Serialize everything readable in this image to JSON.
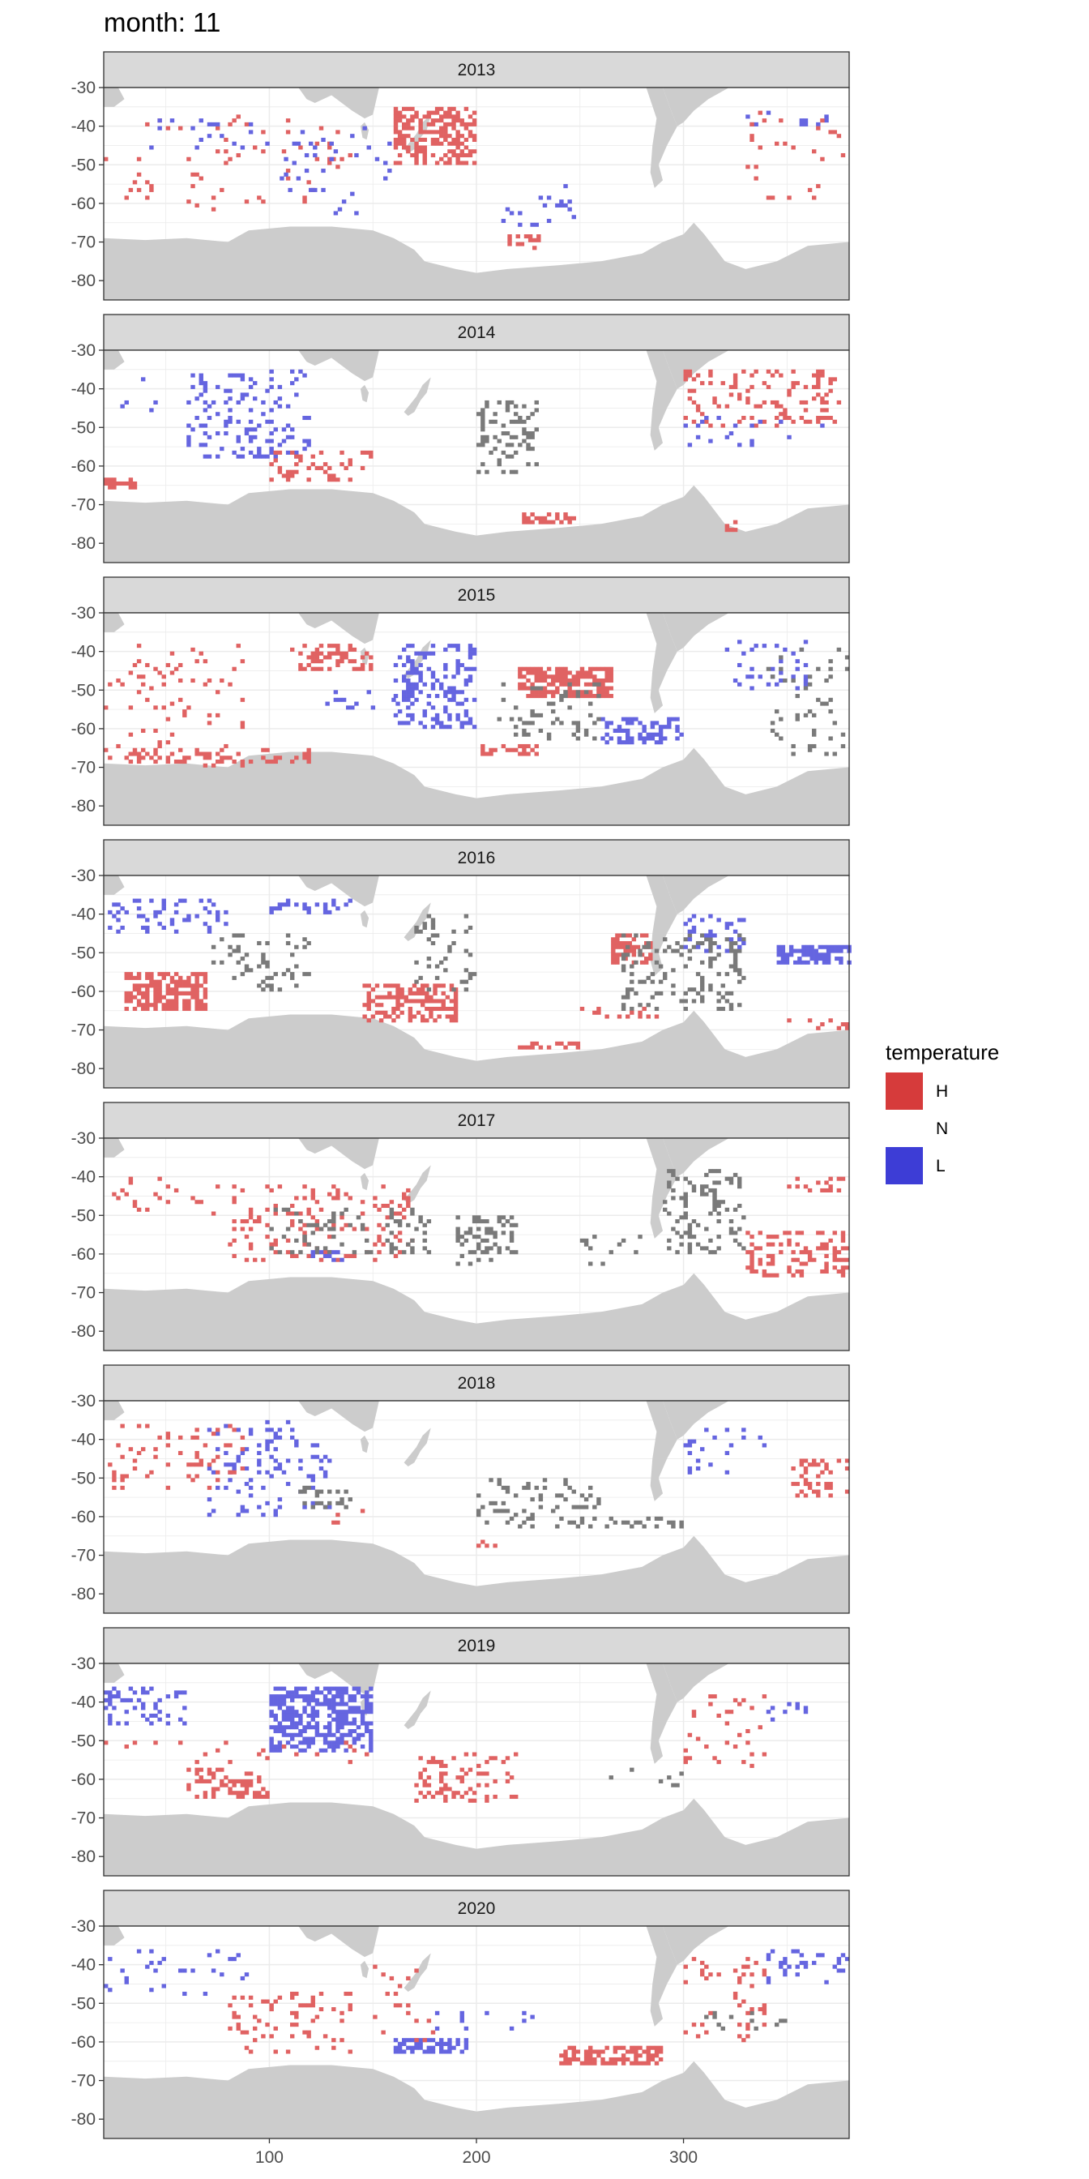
{
  "chart_data": {
    "type": "heatmap",
    "title": "month: 11",
    "x_ticks": [
      100,
      200,
      300
    ],
    "y_ticks": [
      -30,
      -40,
      -50,
      -60,
      -70,
      -80
    ],
    "xlim": [
      20,
      380
    ],
    "ylim": [
      -85,
      -30
    ],
    "grid": true,
    "legend": {
      "title": "temperature",
      "placement": "right",
      "entries": [
        {
          "label": "H",
          "color": "#d63b3b"
        },
        {
          "label": "N",
          "color": "#ffffff"
        },
        {
          "label": "L",
          "color": "#3d3dd6"
        }
      ]
    },
    "colors": {
      "land": "#cccccc",
      "strip": "#d9d9d9",
      "H_cell": "#e06262",
      "L_cell": "#6565e0",
      "N_cell": "#7a7a7a"
    },
    "panels": [
      {
        "year": "2013",
        "clusters": [
          {
            "cat": "H",
            "lon": [
              160,
              200
            ],
            "lat": [
              -35,
              -50
            ],
            "d": 0.55
          },
          {
            "cat": "H",
            "lon": [
              20,
              140
            ],
            "lat": [
              -37,
              -62
            ],
            "d": 0.04
          },
          {
            "cat": "L",
            "lon": [
              40,
              100
            ],
            "lat": [
              -38,
              -46
            ],
            "d": 0.06
          },
          {
            "cat": "L",
            "lon": [
              105,
              160
            ],
            "lat": [
              -40,
              -63
            ],
            "d": 0.05
          },
          {
            "cat": "L",
            "lon": [
              210,
              250
            ],
            "lat": [
              -55,
              -66
            ],
            "d": 0.07
          },
          {
            "cat": "L",
            "lon": [
              330,
              370
            ],
            "lat": [
              -36,
              -40
            ],
            "d": 0.12
          },
          {
            "cat": "H",
            "lon": [
              215,
              230
            ],
            "lat": [
              -68,
              -72
            ],
            "d": 0.25
          },
          {
            "cat": "H",
            "lon": [
              330,
              380
            ],
            "lat": [
              -36,
              -60
            ],
            "d": 0.05
          }
        ]
      },
      {
        "year": "2014",
        "clusters": [
          {
            "cat": "L",
            "lon": [
              60,
              120
            ],
            "lat": [
              -35,
              -58
            ],
            "d": 0.18
          },
          {
            "cat": "L",
            "lon": [
              20,
              50
            ],
            "lat": [
              -36,
              -48
            ],
            "d": 0.05
          },
          {
            "cat": "H",
            "lon": [
              20,
              35
            ],
            "lat": [
              -63,
              -66
            ],
            "d": 0.7
          },
          {
            "cat": "H",
            "lon": [
              100,
              150
            ],
            "lat": [
              -56,
              -64
            ],
            "d": 0.22
          },
          {
            "cat": "N",
            "lon": [
              200,
              230
            ],
            "lat": [
              -43,
              -62
            ],
            "d": 0.25
          },
          {
            "cat": "H",
            "lon": [
              300,
              375
            ],
            "lat": [
              -35,
              -50
            ],
            "d": 0.2
          },
          {
            "cat": "H",
            "lon": [
              220,
              250
            ],
            "lat": [
              -72,
              -75
            ],
            "d": 0.5
          },
          {
            "cat": "H",
            "lon": [
              320,
              330
            ],
            "lat": [
              -74,
              -77
            ],
            "d": 0.4
          },
          {
            "cat": "L",
            "lon": [
              300,
              380
            ],
            "lat": [
              -47,
              -55
            ],
            "d": 0.05
          }
        ]
      },
      {
        "year": "2015",
        "clusters": [
          {
            "cat": "H",
            "lon": [
              220,
              265
            ],
            "lat": [
              -44,
              -52
            ],
            "d": 0.65
          },
          {
            "cat": "H",
            "lon": [
              110,
              150
            ],
            "lat": [
              -38,
              -45
            ],
            "d": 0.35
          },
          {
            "cat": "L",
            "lon": [
              160,
              200
            ],
            "lat": [
              -38,
              -60
            ],
            "d": 0.3
          },
          {
            "cat": "L",
            "lon": [
              260,
              300
            ],
            "lat": [
              -57,
              -64
            ],
            "d": 0.4
          },
          {
            "cat": "L",
            "lon": [
              125,
              165
            ],
            "lat": [
              -50,
              -55
            ],
            "d": 0.15
          },
          {
            "cat": "N",
            "lon": [
              210,
              260
            ],
            "lat": [
              -48,
              -63
            ],
            "d": 0.18
          },
          {
            "cat": "H",
            "lon": [
              200,
              230
            ],
            "lat": [
              -64,
              -67
            ],
            "d": 0.5
          },
          {
            "cat": "H",
            "lon": [
              20,
              90
            ],
            "lat": [
              -38,
              -70
            ],
            "d": 0.08
          },
          {
            "cat": "H",
            "lon": [
              30,
              120
            ],
            "lat": [
              -65,
              -69
            ],
            "d": 0.3
          },
          {
            "cat": "L",
            "lon": [
              320,
              360
            ],
            "lat": [
              -37,
              -50
            ],
            "d": 0.15
          },
          {
            "cat": "N",
            "lon": [
              340,
              380
            ],
            "lat": [
              -38,
              -67
            ],
            "d": 0.07
          }
        ]
      },
      {
        "year": "2016",
        "clusters": [
          {
            "cat": "H",
            "lon": [
              30,
              70
            ],
            "lat": [
              -55,
              -65
            ],
            "d": 0.65
          },
          {
            "cat": "H",
            "lon": [
              145,
              190
            ],
            "lat": [
              -58,
              -68
            ],
            "d": 0.55
          },
          {
            "cat": "H",
            "lon": [
              265,
              285
            ],
            "lat": [
              -45,
              -53
            ],
            "d": 0.6
          },
          {
            "cat": "L",
            "lon": [
              345,
              380
            ],
            "lat": [
              -48,
              -53
            ],
            "d": 0.7
          },
          {
            "cat": "L",
            "lon": [
              20,
              80
            ],
            "lat": [
              -36,
              -45
            ],
            "d": 0.15
          },
          {
            "cat": "L",
            "lon": [
              100,
              140
            ],
            "lat": [
              -36,
              -40
            ],
            "d": 0.3
          },
          {
            "cat": "N",
            "lon": [
              70,
              120
            ],
            "lat": [
              -45,
              -60
            ],
            "d": 0.15
          },
          {
            "cat": "N",
            "lon": [
              170,
              200
            ],
            "lat": [
              -40,
              -60
            ],
            "d": 0.12
          },
          {
            "cat": "N",
            "lon": [
              270,
              330
            ],
            "lat": [
              -45,
              -65
            ],
            "d": 0.18
          },
          {
            "cat": "H",
            "lon": [
              220,
              250
            ],
            "lat": [
              -73,
              -75
            ],
            "d": 0.5
          },
          {
            "cat": "H",
            "lon": [
              250,
              290
            ],
            "lat": [
              -64,
              -67
            ],
            "d": 0.2
          },
          {
            "cat": "H",
            "lon": [
              350,
              380
            ],
            "lat": [
              -67,
              -70
            ],
            "d": 0.2
          },
          {
            "cat": "L",
            "lon": [
              300,
              330
            ],
            "lat": [
              -40,
              -50
            ],
            "d": 0.15
          }
        ]
      },
      {
        "year": "2017",
        "clusters": [
          {
            "cat": "H",
            "lon": [
              80,
              170
            ],
            "lat": [
              -42,
              -62
            ],
            "d": 0.15
          },
          {
            "cat": "N",
            "lon": [
              100,
              180
            ],
            "lat": [
              -48,
              -60
            ],
            "d": 0.12
          },
          {
            "cat": "N",
            "lon": [
              190,
              220
            ],
            "lat": [
              -50,
              -63
            ],
            "d": 0.3
          },
          {
            "cat": "N",
            "lon": [
              290,
              330
            ],
            "lat": [
              -38,
              -60
            ],
            "d": 0.18
          },
          {
            "cat": "H",
            "lon": [
              330,
              380
            ],
            "lat": [
              -54,
              -66
            ],
            "d": 0.3
          },
          {
            "cat": "H",
            "lon": [
              20,
              80
            ],
            "lat": [
              -40,
              -50
            ],
            "d": 0.08
          },
          {
            "cat": "L",
            "lon": [
              120,
              135
            ],
            "lat": [
              -59,
              -62
            ],
            "d": 0.6
          },
          {
            "cat": "N",
            "lon": [
              250,
              280
            ],
            "lat": [
              -55,
              -63
            ],
            "d": 0.12
          },
          {
            "cat": "H",
            "lon": [
              350,
              380
            ],
            "lat": [
              -40,
              -45
            ],
            "d": 0.2
          }
        ]
      },
      {
        "year": "2018",
        "clusters": [
          {
            "cat": "L",
            "lon": [
              70,
              130
            ],
            "lat": [
              -35,
              -60
            ],
            "d": 0.14
          },
          {
            "cat": "H",
            "lon": [
              20,
              90
            ],
            "lat": [
              -36,
              -53
            ],
            "d": 0.12
          },
          {
            "cat": "N",
            "lon": [
              110,
              140
            ],
            "lat": [
              -52,
              -58
            ],
            "d": 0.25
          },
          {
            "cat": "N",
            "lon": [
              200,
              260
            ],
            "lat": [
              -50,
              -63
            ],
            "d": 0.15
          },
          {
            "cat": "N",
            "lon": [
              260,
              300
            ],
            "lat": [
              -60,
              -63
            ],
            "d": 0.2
          },
          {
            "cat": "H",
            "lon": [
              350,
              380
            ],
            "lat": [
              -45,
              -55
            ],
            "d": 0.25
          },
          {
            "cat": "L",
            "lon": [
              300,
              340
            ],
            "lat": [
              -37,
              -50
            ],
            "d": 0.1
          },
          {
            "cat": "H",
            "lon": [
              200,
              210
            ],
            "lat": [
              -66,
              -68
            ],
            "d": 0.5
          },
          {
            "cat": "H",
            "lon": [
              130,
              150
            ],
            "lat": [
              -55,
              -63
            ],
            "d": 0.08
          }
        ]
      },
      {
        "year": "2019",
        "clusters": [
          {
            "cat": "L",
            "lon": [
              100,
              150
            ],
            "lat": [
              -36,
              -53
            ],
            "d": 0.55
          },
          {
            "cat": "L",
            "lon": [
              20,
              60
            ],
            "lat": [
              -36,
              -46
            ],
            "d": 0.25
          },
          {
            "cat": "H",
            "lon": [
              60,
              100
            ],
            "lat": [
              -57,
              -65
            ],
            "d": 0.35
          },
          {
            "cat": "H",
            "lon": [
              170,
              220
            ],
            "lat": [
              -53,
              -66
            ],
            "d": 0.25
          },
          {
            "cat": "H",
            "lon": [
              300,
              340
            ],
            "lat": [
              -38,
              -57
            ],
            "d": 0.1
          },
          {
            "cat": "L",
            "lon": [
              340,
              360
            ],
            "lat": [
              -37,
              -45
            ],
            "d": 0.2
          },
          {
            "cat": "N",
            "lon": [
              260,
              300
            ],
            "lat": [
              -57,
              -62
            ],
            "d": 0.1
          },
          {
            "cat": "H",
            "lon": [
              20,
              150
            ],
            "lat": [
              -50,
              -56
            ],
            "d": 0.05
          }
        ]
      },
      {
        "year": "2020",
        "clusters": [
          {
            "cat": "L",
            "lon": [
              160,
              195
            ],
            "lat": [
              -59,
              -63
            ],
            "d": 0.6
          },
          {
            "cat": "H",
            "lon": [
              240,
              290
            ],
            "lat": [
              -61,
              -66
            ],
            "d": 0.55
          },
          {
            "cat": "H",
            "lon": [
              80,
              140
            ],
            "lat": [
              -47,
              -63
            ],
            "d": 0.15
          },
          {
            "cat": "L",
            "lon": [
              20,
              90
            ],
            "lat": [
              -36,
              -48
            ],
            "d": 0.08
          },
          {
            "cat": "L",
            "lon": [
              340,
              380
            ],
            "lat": [
              -36,
              -45
            ],
            "d": 0.18
          },
          {
            "cat": "N",
            "lon": [
              310,
              350
            ],
            "lat": [
              -52,
              -57
            ],
            "d": 0.15
          },
          {
            "cat": "H",
            "lon": [
              150,
              180
            ],
            "lat": [
              -40,
              -60
            ],
            "d": 0.08
          },
          {
            "cat": "L",
            "lon": [
              180,
              230
            ],
            "lat": [
              -52,
              -57
            ],
            "d": 0.08
          },
          {
            "cat": "H",
            "lon": [
              300,
              340
            ],
            "lat": [
              -38,
              -60
            ],
            "d": 0.1
          }
        ]
      }
    ]
  }
}
